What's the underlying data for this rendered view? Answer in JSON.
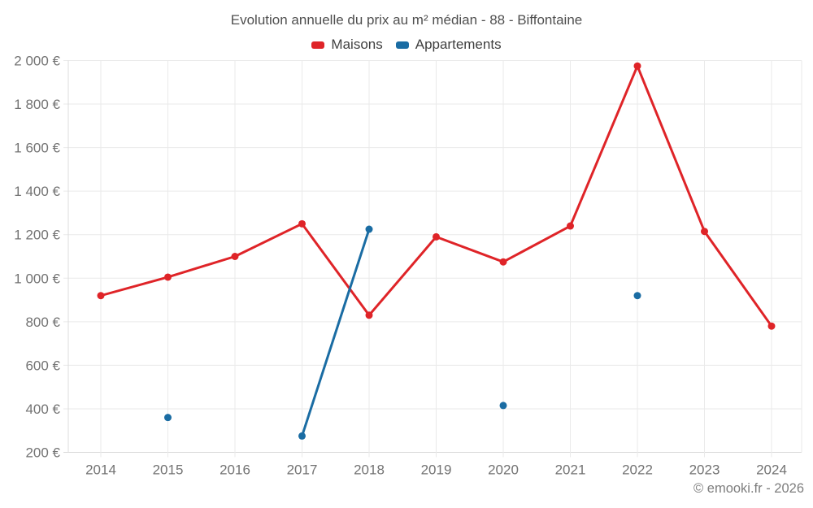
{
  "title": "Evolution annuelle du prix au m² médian - 88 - Biffontaine",
  "footer": "© emooki.fr - 2026",
  "legend": [
    {
      "label": "Maisons",
      "color": "#df2428"
    },
    {
      "label": "Appartements",
      "color": "#1a6ca3"
    }
  ],
  "chart_data": {
    "type": "line",
    "title": "Evolution annuelle du prix au m² médian - 88 - Biffontaine",
    "categories": [
      "2014",
      "2015",
      "2016",
      "2017",
      "2018",
      "2019",
      "2020",
      "2021",
      "2022",
      "2023",
      "2024"
    ],
    "series": [
      {
        "name": "Maisons",
        "color": "#df2428",
        "values": [
          920,
          1005,
          1100,
          1250,
          830,
          1190,
          1075,
          1240,
          1975,
          1215,
          780
        ]
      },
      {
        "name": "Appartements",
        "color": "#1a6ca3",
        "values": [
          null,
          360,
          null,
          275,
          1225,
          null,
          415,
          null,
          920,
          null,
          null
        ]
      }
    ],
    "yticks": [
      {
        "value": 200,
        "label": "200 €"
      },
      {
        "value": 400,
        "label": "400 €"
      },
      {
        "value": 600,
        "label": "600 €"
      },
      {
        "value": 800,
        "label": "800 €"
      },
      {
        "value": 1000,
        "label": "1 000 €"
      },
      {
        "value": 1200,
        "label": "1 200 €"
      },
      {
        "value": 1400,
        "label": "1 400 €"
      },
      {
        "value": 1600,
        "label": "1 600 €"
      },
      {
        "value": 1800,
        "label": "1 800 €"
      },
      {
        "value": 2000,
        "label": "2 000 €"
      }
    ],
    "ylim": [
      200,
      2000
    ],
    "xlabel": "",
    "ylabel": "",
    "grid": true,
    "legend_position": "top",
    "units": "€/m²"
  }
}
